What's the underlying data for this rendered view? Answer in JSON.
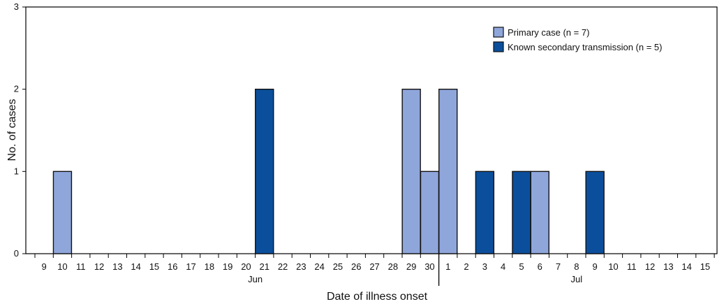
{
  "chart_data": {
    "type": "bar",
    "stacked": true,
    "title": "",
    "xlabel": "Date of illness onset",
    "ylabel": "No. of cases",
    "ylim": [
      0,
      3
    ],
    "yticks": [
      "0",
      "1",
      "2",
      "3"
    ],
    "categories": [
      "9",
      "10",
      "11",
      "12",
      "13",
      "14",
      "15",
      "16",
      "17",
      "18",
      "19",
      "20",
      "21",
      "22",
      "23",
      "24",
      "25",
      "26",
      "27",
      "28",
      "29",
      "30",
      "1",
      "2",
      "3",
      "4",
      "5",
      "6",
      "7",
      "8",
      "9",
      "10",
      "11",
      "12",
      "13",
      "14",
      "15"
    ],
    "month_labels": [
      {
        "label": "Jun",
        "category_index": 11.5
      },
      {
        "label": "Jul",
        "category_index": 29
      }
    ],
    "month_divider_between": [
      21,
      22
    ],
    "series": [
      {
        "name": "Primary case (n = 7)",
        "color": "#8FA6DB",
        "values": [
          0,
          1,
          0,
          0,
          0,
          0,
          0,
          0,
          0,
          0,
          0,
          0,
          0,
          0,
          0,
          0,
          0,
          0,
          0,
          0,
          2,
          1,
          2,
          0,
          0,
          0,
          0,
          1,
          0,
          0,
          0,
          0,
          0,
          0,
          0,
          0,
          0
        ]
      },
      {
        "name": "Known secondary transmission (n = 5)",
        "color": "#0B4F9C",
        "values": [
          0,
          0,
          0,
          0,
          0,
          0,
          0,
          0,
          0,
          0,
          0,
          0,
          2,
          0,
          0,
          0,
          0,
          0,
          0,
          0,
          0,
          0,
          0,
          0,
          1,
          0,
          1,
          0,
          0,
          0,
          1,
          0,
          0,
          0,
          0,
          0,
          0
        ]
      }
    ],
    "legend_position": "top-right",
    "grid": false
  }
}
